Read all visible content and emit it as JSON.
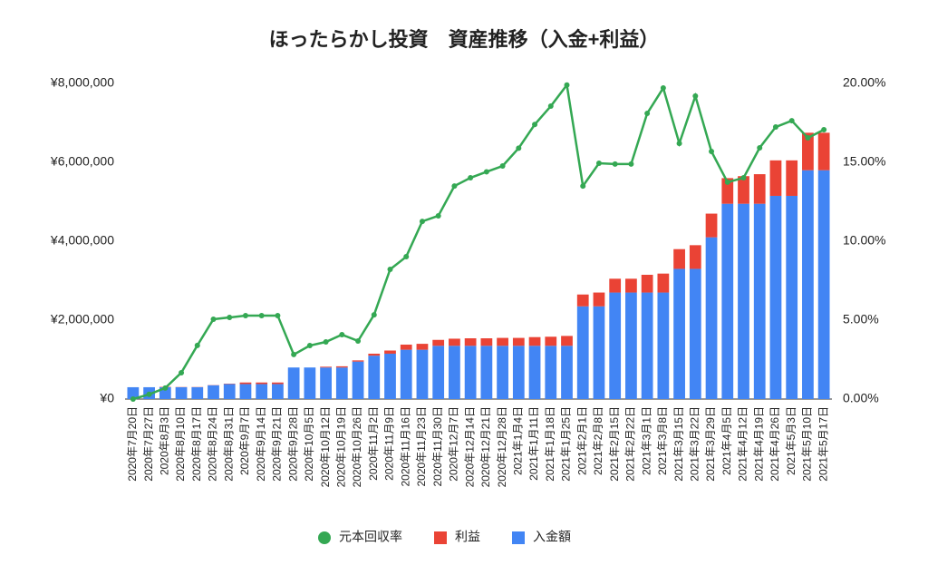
{
  "chart_data": {
    "type": "bar",
    "stacked": true,
    "title": "ほったらかし投資　資産推移（入金+利益）",
    "categories": [
      "2020年7月20日",
      "2020年7月27日",
      "2020年8月3日",
      "2020年8月10日",
      "2020年8月17日",
      "2020年8月24日",
      "2020年8月31日",
      "2020年9月7日",
      "2020年9月14日",
      "2020年9月21日",
      "2020年9月28日",
      "2020年10月5日",
      "2020年10月12日",
      "2020年10月19日",
      "2020年10月26日",
      "2020年11月2日",
      "2020年11月9日",
      "2020年11月16日",
      "2020年11月23日",
      "2020年11月30日",
      "2020年12月7日",
      "2020年12月14日",
      "2020年12月21日",
      "2020年12月28日",
      "2021年1月4日",
      "2021年1月11日",
      "2021年1月18日",
      "2021年1月25日",
      "2021年2月1日",
      "2021年2月8日",
      "2021年2月15日",
      "2021年2月22日",
      "2021年3月1日",
      "2021年3月8日",
      "2021年3月15日",
      "2021年3月22日",
      "2021年3月29日",
      "2021年4月5日",
      "2021年4月12日",
      "2021年4月19日",
      "2021年4月26日",
      "2021年5月3日",
      "2021年5月10日",
      "2021年5月17日"
    ],
    "series": [
      {
        "name": "元本回収率",
        "type": "line",
        "axis": "y2",
        "color": "#34a853",
        "values": [
          0.0,
          0.3,
          0.7,
          1.67,
          3.4,
          5.06,
          5.17,
          5.29,
          5.29,
          5.29,
          2.82,
          3.39,
          3.62,
          4.08,
          3.68,
          5.34,
          8.22,
          9.02,
          11.26,
          11.61,
          13.5,
          14.02,
          14.4,
          14.77,
          15.9,
          17.4,
          18.56,
          19.9,
          13.5,
          14.94,
          14.89,
          14.89,
          18.1,
          19.71,
          16.2,
          19.2,
          15.69,
          13.74,
          14.02,
          15.92,
          17.24,
          17.64,
          16.55,
          17.07
        ]
      },
      {
        "name": "利益",
        "type": "bar",
        "color": "#ea4335",
        "values": [
          0,
          0,
          10000,
          5000,
          5000,
          5000,
          10000,
          40000,
          40000,
          40000,
          0,
          0,
          20000,
          30000,
          30000,
          50000,
          80000,
          130000,
          150000,
          150000,
          180000,
          190000,
          190000,
          200000,
          200000,
          220000,
          230000,
          250000,
          300000,
          350000,
          350000,
          350000,
          450000,
          480000,
          500000,
          600000,
          600000,
          650000,
          700000,
          750000,
          900000,
          900000,
          950000,
          950000
        ]
      },
      {
        "name": "入金額",
        "type": "bar",
        "color": "#4285f4",
        "values": [
          300000,
          300000,
          300000,
          300000,
          300000,
          350000,
          380000,
          380000,
          380000,
          380000,
          800000,
          800000,
          800000,
          800000,
          950000,
          1100000,
          1150000,
          1250000,
          1250000,
          1350000,
          1350000,
          1350000,
          1350000,
          1350000,
          1350000,
          1350000,
          1350000,
          1350000,
          2350000,
          2350000,
          2700000,
          2700000,
          2700000,
          2700000,
          3300000,
          3300000,
          4100000,
          4950000,
          4950000,
          4950000,
          5150000,
          5150000,
          5800000,
          5800000
        ]
      }
    ],
    "ylim": [
      0,
      8000000
    ],
    "yticks": [
      {
        "value": 0,
        "label": "¥0"
      },
      {
        "value": 2000000,
        "label": "¥2,000,000"
      },
      {
        "value": 4000000,
        "label": "¥4,000,000"
      },
      {
        "value": 6000000,
        "label": "¥6,000,000"
      },
      {
        "value": 8000000,
        "label": "¥8,000,000"
      }
    ],
    "y2lim": [
      0,
      20
    ],
    "y2ticks": [
      {
        "value": 0,
        "label": "0.00%"
      },
      {
        "value": 5,
        "label": "5.00%"
      },
      {
        "value": 10,
        "label": "10.00%"
      },
      {
        "value": 15,
        "label": "15.00%"
      },
      {
        "value": 20,
        "label": "20.00%"
      }
    ],
    "grid": false,
    "legend": "bottom"
  }
}
